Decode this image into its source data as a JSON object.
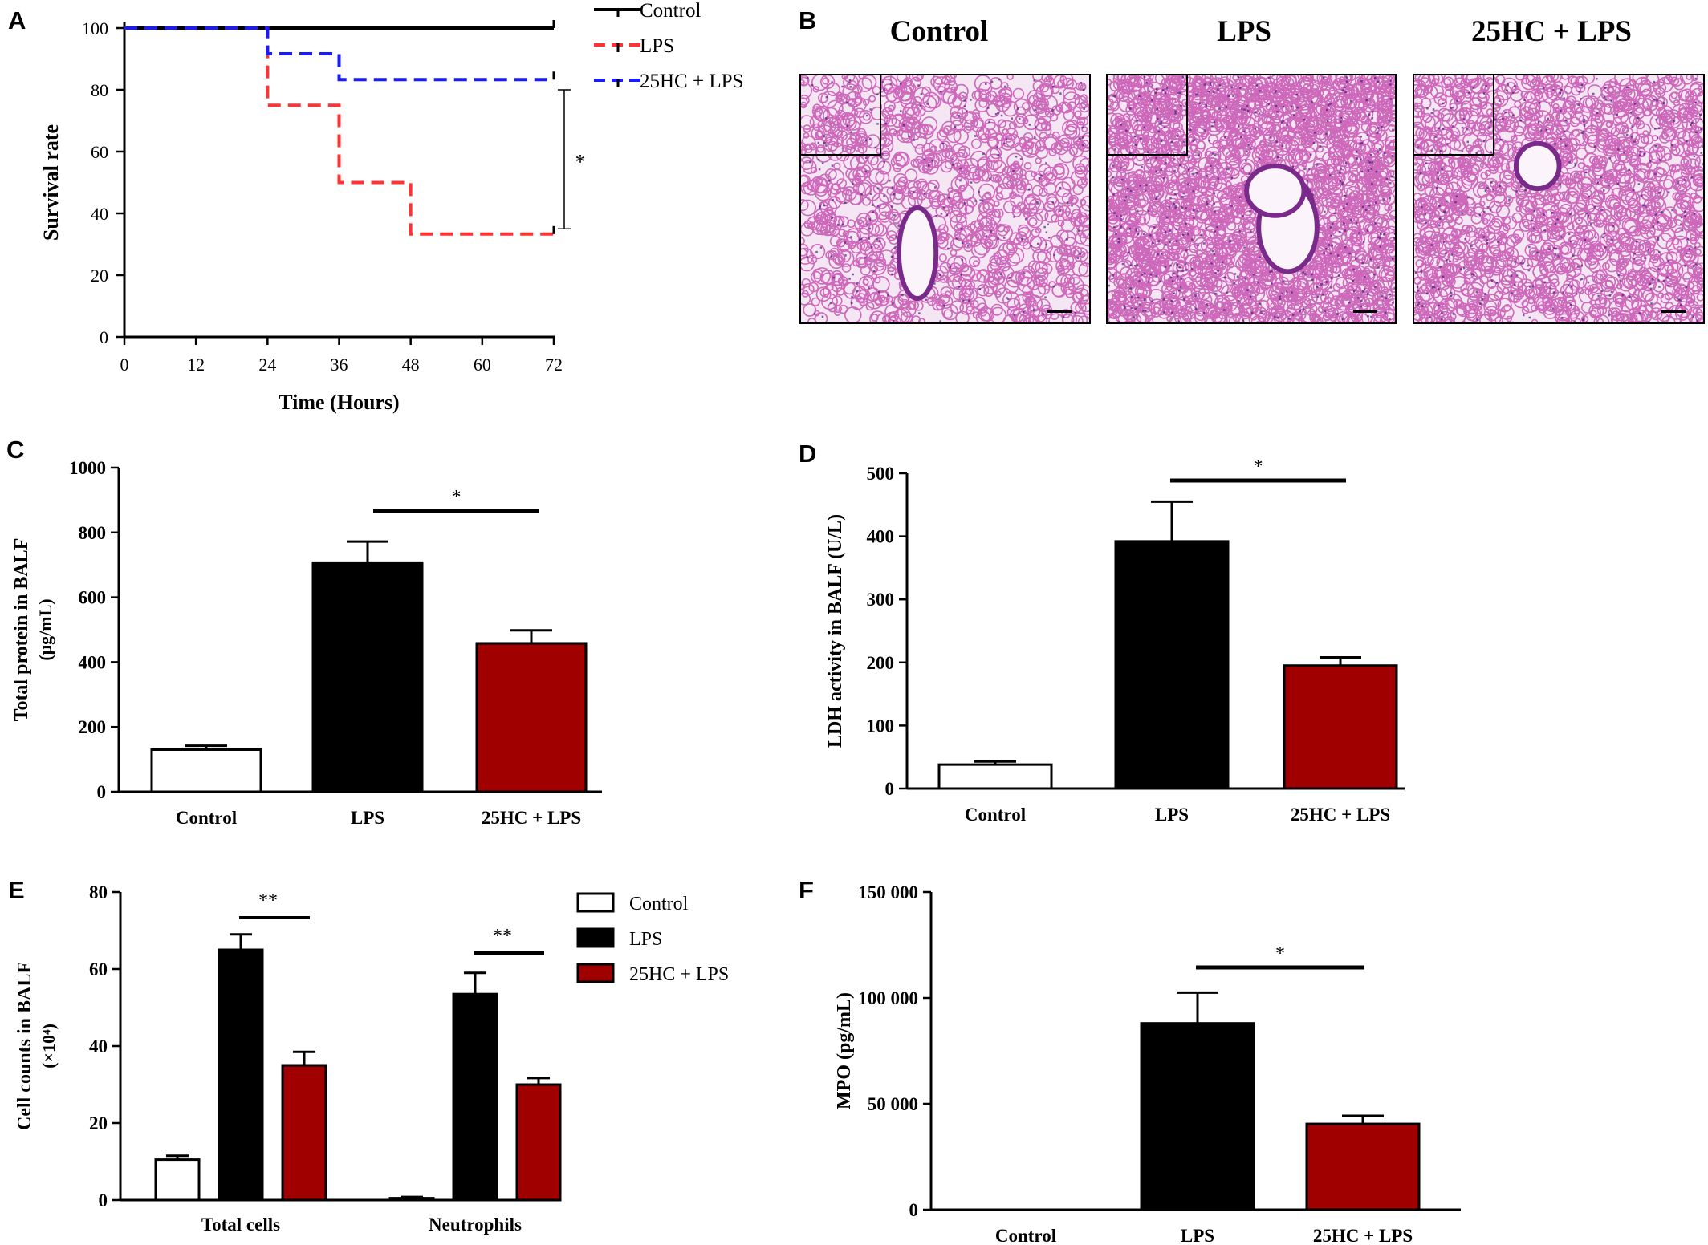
{
  "panels": {
    "A": "A",
    "B": "B",
    "C": "C",
    "D": "D",
    "E": "E",
    "F": "F"
  },
  "histology": {
    "titles": [
      "Control",
      "LPS",
      "25HC + LPS"
    ],
    "tissue_color": "#c03da8",
    "background_color": "#f4e6f2"
  },
  "colors": {
    "control": "#000000",
    "lps": "#000000",
    "hc_lps": "#a00000",
    "km_control": "#000000",
    "km_lps": "#ff3333",
    "km_hc_lps": "#1a1aff"
  },
  "chart_data": [
    {
      "id": "A",
      "type": "line",
      "xlabel": "Time (Hours)",
      "ylabel": "Survival rate",
      "xlim": [
        0,
        72
      ],
      "ylim": [
        0,
        100
      ],
      "xticks": [
        0,
        12,
        24,
        36,
        48,
        60,
        72
      ],
      "yticks": [
        0,
        20,
        40,
        60,
        80,
        100
      ],
      "legend": "top-right",
      "series": [
        {
          "name": "Control",
          "x": [
            0,
            72
          ],
          "y": [
            100,
            100
          ],
          "style": "solid"
        },
        {
          "name": "LPS",
          "x": [
            0,
            24,
            24,
            36,
            36,
            48,
            48,
            72
          ],
          "y": [
            100,
            100,
            75,
            75,
            50,
            50,
            33.3,
            33.3
          ],
          "style": "dashed"
        },
        {
          "name": "25HC + LPS",
          "x": [
            0,
            24,
            24,
            36,
            36,
            72
          ],
          "y": [
            100,
            100,
            91.7,
            91.7,
            83.3,
            83.3
          ],
          "style": "dashed"
        }
      ],
      "annotation": "*"
    },
    {
      "id": "C",
      "type": "bar",
      "ylabel_line1": "Total protein in BALF",
      "ylabel_line2": "(μg/mL)",
      "categories": [
        "Control",
        "LPS",
        "25HC + LPS"
      ],
      "values": [
        130,
        707,
        458
      ],
      "errors": [
        12,
        65,
        40
      ],
      "ylim": [
        0,
        1000
      ],
      "yticks": [
        0,
        200,
        400,
        600,
        800,
        1000
      ],
      "annotation": "*"
    },
    {
      "id": "D",
      "type": "bar",
      "ylabel_line1": "LDH activity in BALF (U/L)",
      "categories": [
        "Control",
        "LPS",
        "25HC + LPS"
      ],
      "values": [
        38,
        392,
        195
      ],
      "errors": [
        5,
        63,
        13
      ],
      "ylim": [
        0,
        500
      ],
      "yticks": [
        0,
        100,
        200,
        300,
        400,
        500
      ],
      "annotation": "*"
    },
    {
      "id": "E",
      "type": "bar",
      "ylabel_line1": "Cell counts in BALF",
      "ylabel_line2": "(×10⁴)",
      "categories": [
        "Total cells",
        "Neutrophils"
      ],
      "series": [
        {
          "name": "Control",
          "values": [
            10.5,
            0.5
          ],
          "errors": [
            1,
            0.3
          ]
        },
        {
          "name": "LPS",
          "values": [
            65,
            53.5
          ],
          "errors": [
            4,
            5.5
          ]
        },
        {
          "name": "25HC + LPS",
          "values": [
            35,
            30
          ],
          "errors": [
            3.5,
            1.7
          ]
        }
      ],
      "ylim": [
        0,
        80
      ],
      "yticks": [
        0,
        20,
        40,
        60,
        80
      ],
      "legend": "top-right",
      "annotations": [
        "**",
        "**"
      ]
    },
    {
      "id": "F",
      "type": "bar",
      "ylabel_line1": "MPO (pg/mL)",
      "categories": [
        "Control",
        "LPS",
        "25HC + LPS"
      ],
      "values": [
        0,
        88000,
        40500
      ],
      "errors": [
        0,
        14500,
        3800
      ],
      "ylim": [
        0,
        150000
      ],
      "yticks": [
        0,
        50000,
        100000,
        150000
      ],
      "ytick_labels": [
        "0",
        "50 000",
        "100 000",
        "150 000"
      ],
      "annotation": "*"
    }
  ]
}
